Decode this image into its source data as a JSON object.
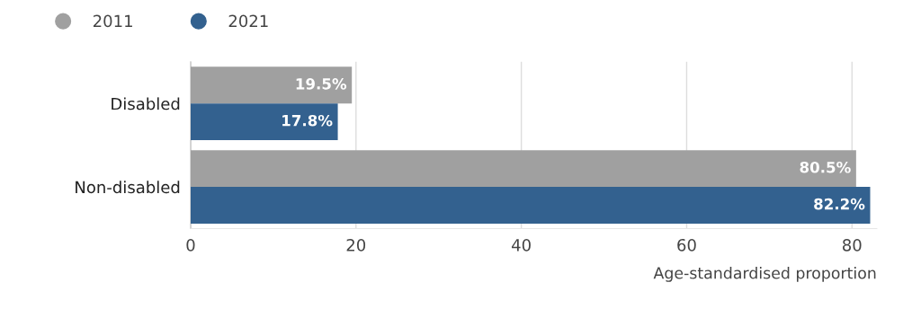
{
  "chart_data": {
    "type": "bar",
    "orientation": "horizontal",
    "xlabel": "Age-standardised proportion",
    "categories": [
      "Disabled",
      "Non-disabled"
    ],
    "series": [
      {
        "name": "2011",
        "color": "#a0a0a0",
        "values": [
          19.5,
          80.5
        ],
        "value_labels": [
          "19.5%",
          "80.5%"
        ]
      },
      {
        "name": "2021",
        "color": "#33618f",
        "values": [
          17.8,
          82.2
        ],
        "value_labels": [
          "17.8%",
          "82.2%"
        ]
      }
    ],
    "xlim": [
      0,
      83
    ],
    "xticks": [
      0,
      20,
      40,
      60,
      80
    ],
    "grid": "x",
    "legend": "top left"
  }
}
